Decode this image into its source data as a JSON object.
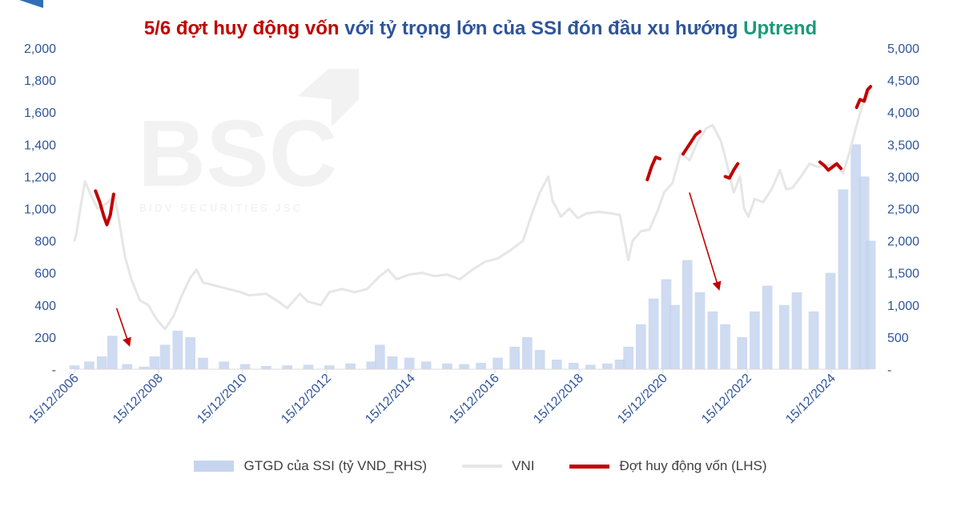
{
  "title": {
    "part1": "5/6 đợt huy động vốn",
    "part2": " với tỷ trọng lớn của SSI đón đầu xu hướng ",
    "part3": "Uptrend"
  },
  "watermark": {
    "logo": "BSC",
    "subtitle": "BIDV SECURITIES JSC"
  },
  "colors": {
    "title_red": "#c00000",
    "title_blue": "#2f5597",
    "title_green": "#1a9a7a",
    "vni": "#e6e6e6",
    "volume": "#c6d5ef",
    "raise": "#c00000",
    "axis": "#2f5597"
  },
  "chart_data": {
    "type": "line",
    "title": "5/6 đợt huy động vốn với tỷ trọng lớn của SSI đón đầu xu hướng Uptrend",
    "x_tick_labels": [
      "15/12/2006",
      "15/12/2008",
      "15/12/2010",
      "15/12/2012",
      "15/12/2014",
      "15/12/2016",
      "15/12/2018",
      "15/12/2020",
      "15/12/2022",
      "15/12/2024"
    ],
    "x_range": [
      2006.95,
      2025.85
    ],
    "y_left": {
      "range": [
        0,
        2000
      ],
      "ticks": [
        0,
        200,
        400,
        600,
        800,
        1000,
        1200,
        1400,
        1600,
        1800,
        2000
      ],
      "tick_labels": [
        "-",
        "200",
        "400",
        "600",
        "800",
        "1,000",
        "1,200",
        "1,400",
        "1,600",
        "1,800",
        "2,000"
      ]
    },
    "y_right": {
      "range": [
        0,
        5000
      ],
      "ticks": [
        0,
        500,
        1000,
        1500,
        2000,
        2500,
        3000,
        3500,
        4000,
        4500,
        5000
      ],
      "tick_labels": [
        "-",
        "500",
        "1,000",
        "1,500",
        "2,000",
        "2,500",
        "3,000",
        "3,500",
        "4,000",
        "4,500",
        "5,000"
      ]
    },
    "grid": false,
    "legend_position": "bottom",
    "series": [
      {
        "name": "GTGD của SSI (tỷ VND_RHS)",
        "type": "bar",
        "axis": "right",
        "points": [
          [
            2006.95,
            60
          ],
          [
            2007.3,
            120
          ],
          [
            2007.6,
            200
          ],
          [
            2007.85,
            520
          ],
          [
            2008.2,
            80
          ],
          [
            2008.6,
            40
          ],
          [
            2008.85,
            200
          ],
          [
            2009.1,
            380
          ],
          [
            2009.4,
            600
          ],
          [
            2009.7,
            500
          ],
          [
            2010.0,
            180
          ],
          [
            2010.5,
            120
          ],
          [
            2011.0,
            80
          ],
          [
            2011.5,
            50
          ],
          [
            2012.0,
            60
          ],
          [
            2012.5,
            70
          ],
          [
            2013.0,
            60
          ],
          [
            2013.5,
            90
          ],
          [
            2014.0,
            120
          ],
          [
            2014.2,
            380
          ],
          [
            2014.5,
            200
          ],
          [
            2014.9,
            180
          ],
          [
            2015.3,
            120
          ],
          [
            2015.8,
            90
          ],
          [
            2016.2,
            80
          ],
          [
            2016.6,
            100
          ],
          [
            2017.0,
            180
          ],
          [
            2017.4,
            350
          ],
          [
            2017.7,
            500
          ],
          [
            2018.0,
            300
          ],
          [
            2018.4,
            150
          ],
          [
            2018.8,
            100
          ],
          [
            2019.2,
            70
          ],
          [
            2019.6,
            90
          ],
          [
            2019.9,
            150
          ],
          [
            2020.1,
            350
          ],
          [
            2020.4,
            700
          ],
          [
            2020.7,
            1100
          ],
          [
            2021.0,
            1400
          ],
          [
            2021.2,
            1000
          ],
          [
            2021.5,
            1700
          ],
          [
            2021.8,
            1200
          ],
          [
            2022.1,
            900
          ],
          [
            2022.4,
            700
          ],
          [
            2022.8,
            500
          ],
          [
            2023.1,
            900
          ],
          [
            2023.4,
            1300
          ],
          [
            2023.8,
            1000
          ],
          [
            2024.1,
            1200
          ],
          [
            2024.5,
            900
          ],
          [
            2024.9,
            1500
          ],
          [
            2025.2,
            2800
          ],
          [
            2025.5,
            3500
          ],
          [
            2025.7,
            3000
          ],
          [
            2025.85,
            2000
          ]
        ]
      },
      {
        "name": "VNI",
        "type": "line",
        "axis": "left",
        "points": [
          [
            2006.95,
            800
          ],
          [
            2007.0,
            850
          ],
          [
            2007.1,
            1020
          ],
          [
            2007.2,
            1170
          ],
          [
            2007.35,
            1080
          ],
          [
            2007.5,
            1000
          ],
          [
            2007.7,
            1030
          ],
          [
            2007.9,
            1080
          ],
          [
            2008.0,
            940
          ],
          [
            2008.15,
            700
          ],
          [
            2008.3,
            560
          ],
          [
            2008.5,
            430
          ],
          [
            2008.7,
            400
          ],
          [
            2008.9,
            310
          ],
          [
            2009.1,
            250
          ],
          [
            2009.3,
            330
          ],
          [
            2009.5,
            460
          ],
          [
            2009.7,
            570
          ],
          [
            2009.85,
            620
          ],
          [
            2010.0,
            540
          ],
          [
            2010.3,
            520
          ],
          [
            2010.6,
            500
          ],
          [
            2010.9,
            480
          ],
          [
            2011.1,
            460
          ],
          [
            2011.5,
            470
          ],
          [
            2011.8,
            420
          ],
          [
            2012.0,
            380
          ],
          [
            2012.3,
            470
          ],
          [
            2012.5,
            420
          ],
          [
            2012.8,
            400
          ],
          [
            2013.0,
            480
          ],
          [
            2013.3,
            500
          ],
          [
            2013.6,
            480
          ],
          [
            2013.9,
            500
          ],
          [
            2014.2,
            580
          ],
          [
            2014.4,
            620
          ],
          [
            2014.6,
            560
          ],
          [
            2014.9,
            590
          ],
          [
            2015.2,
            600
          ],
          [
            2015.5,
            580
          ],
          [
            2015.8,
            590
          ],
          [
            2016.1,
            560
          ],
          [
            2016.4,
            620
          ],
          [
            2016.7,
            670
          ],
          [
            2017.0,
            690
          ],
          [
            2017.3,
            740
          ],
          [
            2017.6,
            800
          ],
          [
            2017.8,
            960
          ],
          [
            2018.0,
            1100
          ],
          [
            2018.2,
            1200
          ],
          [
            2018.3,
            1050
          ],
          [
            2018.5,
            950
          ],
          [
            2018.7,
            1000
          ],
          [
            2018.9,
            940
          ],
          [
            2019.1,
            970
          ],
          [
            2019.4,
            980
          ],
          [
            2019.7,
            970
          ],
          [
            2019.9,
            960
          ],
          [
            2020.1,
            680
          ],
          [
            2020.2,
            800
          ],
          [
            2020.4,
            860
          ],
          [
            2020.6,
            870
          ],
          [
            2020.8,
            990
          ],
          [
            2020.95,
            1100
          ],
          [
            2021.15,
            1160
          ],
          [
            2021.35,
            1350
          ],
          [
            2021.55,
            1300
          ],
          [
            2021.75,
            1420
          ],
          [
            2021.95,
            1500
          ],
          [
            2022.1,
            1520
          ],
          [
            2022.3,
            1420
          ],
          [
            2022.45,
            1270
          ],
          [
            2022.6,
            1100
          ],
          [
            2022.75,
            1200
          ],
          [
            2022.85,
            1000
          ],
          [
            2022.95,
            950
          ],
          [
            2023.1,
            1060
          ],
          [
            2023.3,
            1040
          ],
          [
            2023.5,
            1120
          ],
          [
            2023.7,
            1240
          ],
          [
            2023.85,
            1120
          ],
          [
            2024.0,
            1130
          ],
          [
            2024.2,
            1200
          ],
          [
            2024.4,
            1280
          ],
          [
            2024.6,
            1260
          ],
          [
            2024.8,
            1270
          ],
          [
            2025.0,
            1280
          ],
          [
            2025.2,
            1220
          ],
          [
            2025.35,
            1350
          ],
          [
            2025.5,
            1500
          ],
          [
            2025.65,
            1640
          ],
          [
            2025.78,
            1700
          ],
          [
            2025.85,
            1750
          ]
        ]
      },
      {
        "name": "Đợt huy động vốn (LHS)",
        "type": "line",
        "axis": "left",
        "segments": [
          [
            [
              2007.45,
              1110
            ],
            [
              2007.55,
              1040
            ],
            [
              2007.65,
              950
            ],
            [
              2007.72,
              900
            ],
            [
              2007.8,
              960
            ],
            [
              2007.88,
              1090
            ]
          ],
          [
            [
              2020.55,
              1180
            ],
            [
              2020.65,
              1260
            ],
            [
              2020.75,
              1320
            ],
            [
              2020.85,
              1310
            ]
          ],
          [
            [
              2021.4,
              1340
            ],
            [
              2021.5,
              1380
            ],
            [
              2021.6,
              1420
            ],
            [
              2021.7,
              1460
            ],
            [
              2021.8,
              1480
            ]
          ],
          [
            [
              2022.4,
              1200
            ],
            [
              2022.5,
              1190
            ],
            [
              2022.6,
              1240
            ],
            [
              2022.7,
              1280
            ]
          ],
          [
            [
              2024.65,
              1290
            ],
            [
              2024.75,
              1270
            ],
            [
              2024.85,
              1240
            ],
            [
              2024.95,
              1260
            ],
            [
              2025.05,
              1280
            ],
            [
              2025.15,
              1250
            ]
          ],
          [
            [
              2025.52,
              1630
            ],
            [
              2025.6,
              1680
            ],
            [
              2025.7,
              1670
            ],
            [
              2025.78,
              1740
            ],
            [
              2025.85,
              1760
            ]
          ]
        ]
      }
    ],
    "annotations": [
      {
        "type": "arrow",
        "from": [
          2007.95,
          380
        ],
        "to": [
          2008.25,
          150
        ]
      },
      {
        "type": "arrow",
        "from": [
          2021.55,
          1100
        ],
        "to": [
          2022.25,
          500
        ]
      }
    ]
  },
  "legend": {
    "volume_label": "GTGD của SSI (tỷ VND_RHS)",
    "vni_label": "VNI",
    "raise_label": "Đợt huy động vốn (LHS)"
  }
}
